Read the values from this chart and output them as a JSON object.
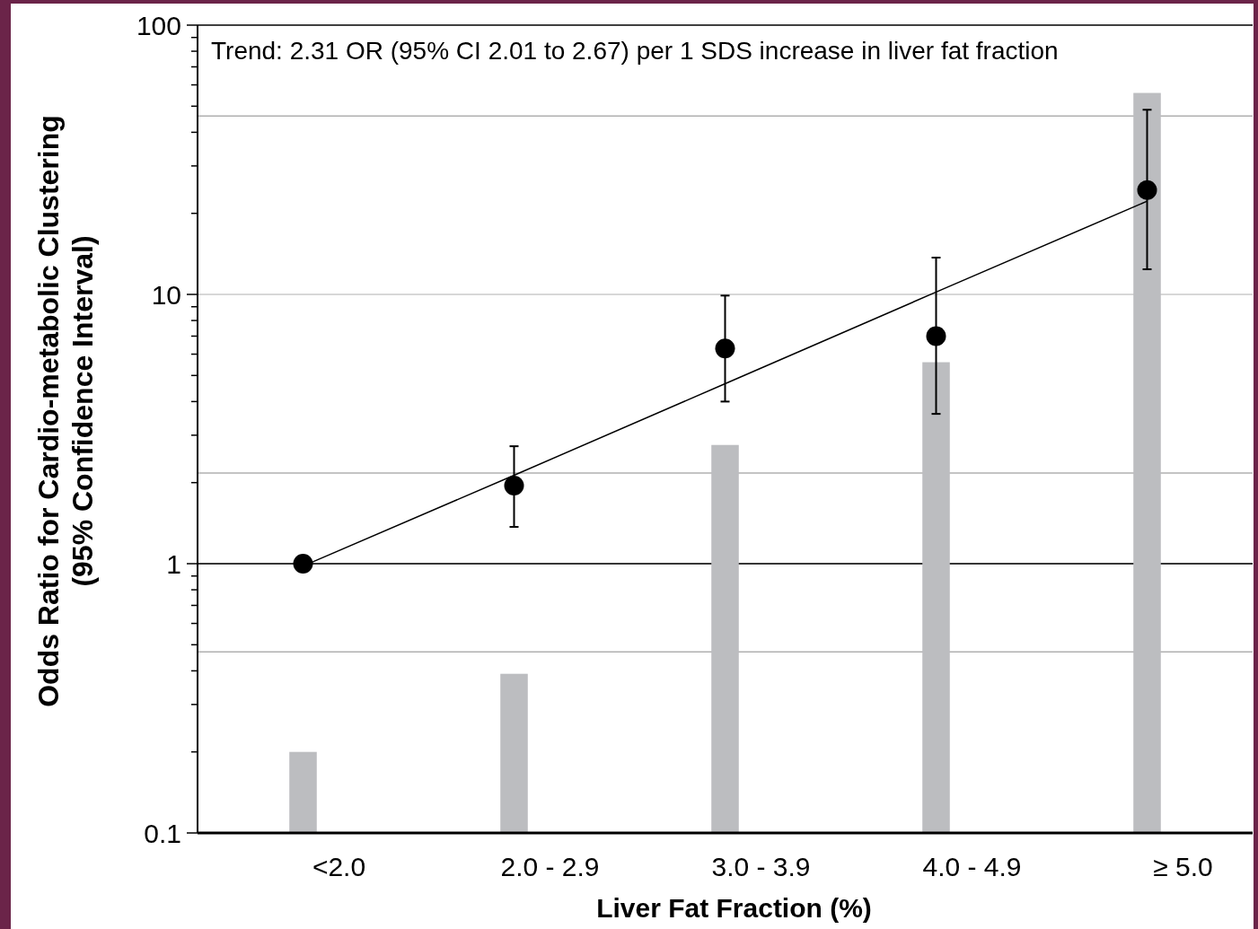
{
  "chart_data": {
    "type": "bar",
    "xlabel": "Liver Fat Fraction (%)",
    "ylabel": "Odds Ratio for Cardio-metabolic Clustering\n(95% Confidence Interval)",
    "annotations": [
      "Trend: 2.31 OR (95% CI 2.01 to 2.67) per 1 SDS increase in liver fat fraction"
    ],
    "categories": [
      "<2.0",
      "2.0 - 2.9",
      "3.0 - 3.9",
      "4.0 - 4.9",
      "≥ 5.0"
    ],
    "log": "y",
    "ylim": [
      0.1,
      100
    ],
    "yticks": [
      0.1,
      {
        "value": 0.2,
        "label": null
      },
      {
        "value": 0.3,
        "label": null
      },
      {
        "value": 0.4,
        "label": null
      },
      {
        "value": 0.5,
        "label": null
      },
      {
        "value": 0.6,
        "label": null
      },
      {
        "value": 0.7,
        "label": null
      },
      {
        "value": 0.8,
        "label": null
      },
      {
        "value": 0.9,
        "label": null
      },
      1,
      {
        "value": 2,
        "label": null
      },
      {
        "value": 3,
        "label": null
      },
      {
        "value": 4,
        "label": null
      },
      {
        "value": 5,
        "label": null
      },
      {
        "value": 6,
        "label": null
      },
      {
        "value": 7,
        "label": null
      },
      {
        "value": 8,
        "label": null
      },
      {
        "value": 9,
        "label": null
      },
      10,
      {
        "value": 20,
        "label": null
      },
      {
        "value": 30,
        "label": null
      },
      {
        "value": 40,
        "label": null
      },
      {
        "value": 50,
        "label": null
      },
      {
        "value": 60,
        "label": null
      },
      {
        "value": 70,
        "label": null
      },
      {
        "value": 80,
        "label": null
      },
      {
        "value": 90,
        "label": null
      },
      100
    ],
    "grid": "y",
    "ref_lines": [
      {
        "axis": "y",
        "value": 1,
        "color": "#000000"
      },
      {
        "axis": "y",
        "value": 46,
        "color": "#b0b0b0"
      },
      {
        "axis": "y",
        "value": 2.17,
        "color": "#b0b0b0"
      },
      {
        "axis": "y",
        "value": 0.47,
        "color": "#b0b0b0"
      }
    ],
    "series": [
      {
        "color": "#bcbdc0",
        "values": [
          0.2,
          0.39,
          2.76,
          5.6,
          56
        ]
      },
      {
        "type": "scatter",
        "marker": "circle",
        "color": "#000000",
        "values": [
          1.0,
          1.95,
          6.3,
          7.0,
          24.4
        ],
        "errors": [
          null,
          [
            1.37,
            2.73
          ],
          [
            4.0,
            9.9
          ],
          [
            3.6,
            13.7
          ],
          [
            12.4,
            48.5
          ]
        ]
      },
      {
        "type": "line",
        "color": "#000000",
        "values": [
          0.98,
          2.13,
          4.66,
          10.2,
          22.2
        ]
      }
    ]
  }
}
